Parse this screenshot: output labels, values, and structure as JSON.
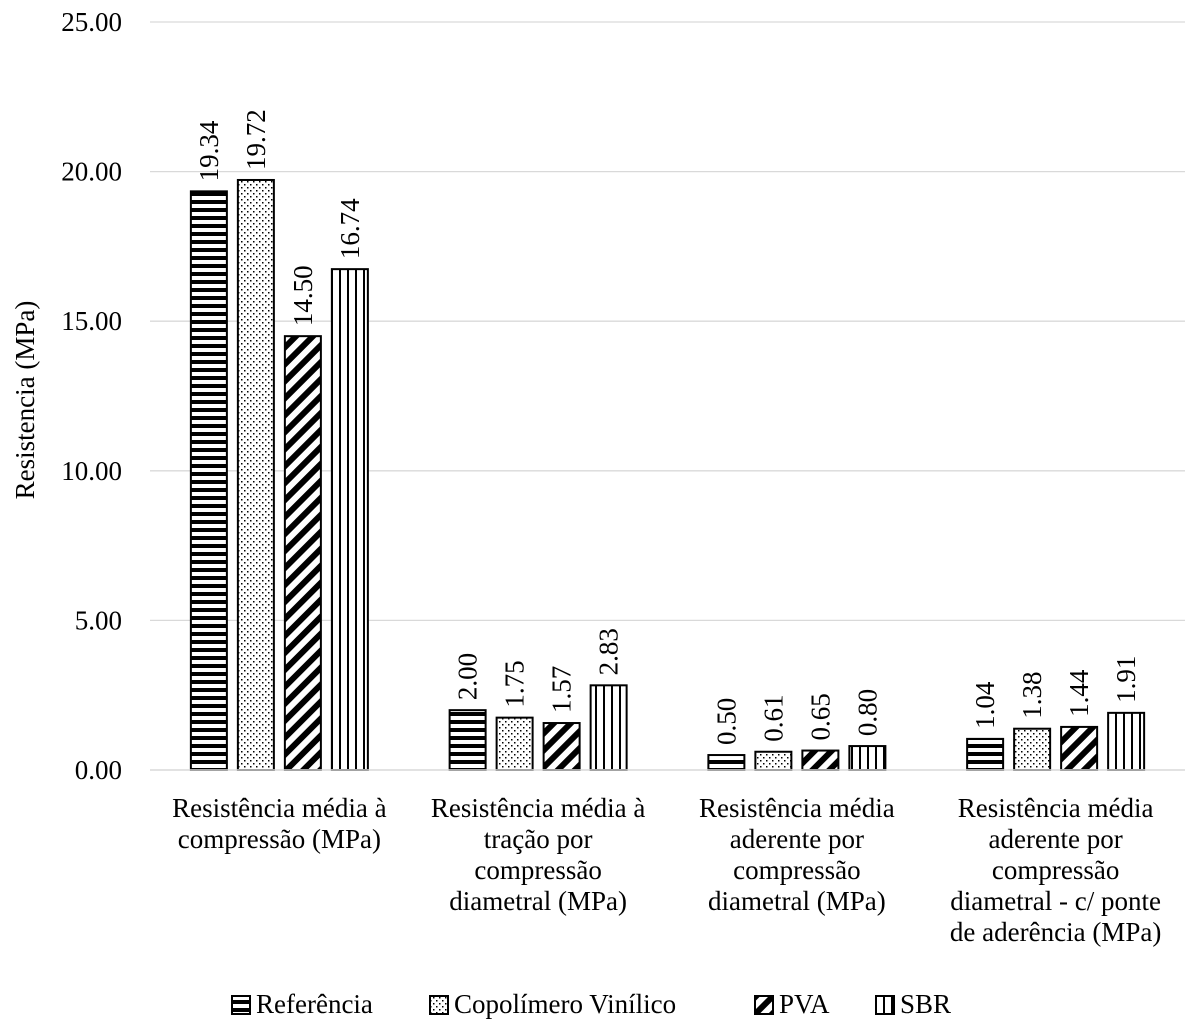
{
  "chart_data": {
    "type": "bar",
    "title": "",
    "ylabel": "Resistencia (MPa)",
    "xlabel": "",
    "ylim": [
      0,
      25
    ],
    "yticks": [
      "0.00",
      "5.00",
      "10.00",
      "15.00",
      "20.00",
      "25.00"
    ],
    "grid": true,
    "legend_position": "bottom",
    "categories": [
      [
        "Resistência média à",
        "compressão (MPa)"
      ],
      [
        "Resistência média à",
        "tração por",
        "compressão",
        "diametral (MPa)"
      ],
      [
        "Resistência média",
        "aderente por",
        "compressão",
        "diametral (MPa)"
      ],
      [
        "Resistência média",
        "aderente por",
        "compressão",
        "diametral - c/ ponte",
        "de aderência (MPa)"
      ]
    ],
    "series": [
      {
        "name": "Referência",
        "pattern": "horizontal-lines",
        "values": [
          19.34,
          2.0,
          0.5,
          1.04
        ],
        "labels": [
          "19.34",
          "2.00",
          "0.50",
          "1.04"
        ]
      },
      {
        "name": "Copolímero Vinílico",
        "pattern": "dots",
        "values": [
          19.72,
          1.75,
          0.61,
          1.38
        ],
        "labels": [
          "19.72",
          "1.75",
          "0.61",
          "1.38"
        ]
      },
      {
        "name": "PVA",
        "pattern": "diagonal-lines",
        "values": [
          14.5,
          1.57,
          0.65,
          1.44
        ],
        "labels": [
          "14.50",
          "1.57",
          "0.65",
          "1.44"
        ]
      },
      {
        "name": "SBR",
        "pattern": "vertical-lines",
        "values": [
          16.74,
          2.83,
          0.8,
          1.91
        ],
        "labels": [
          "16.74",
          "2.83",
          "0.80",
          "1.91"
        ]
      }
    ],
    "colors": {
      "ink": "#000000",
      "grid": "#d9d9d9",
      "background": "#ffffff"
    }
  }
}
